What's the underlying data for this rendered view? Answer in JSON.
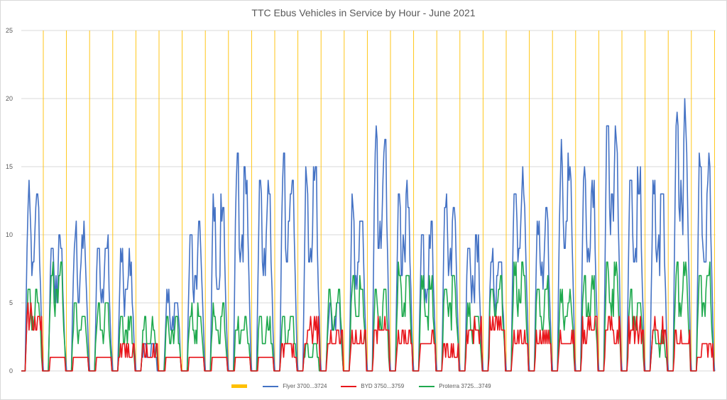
{
  "chart_data": {
    "type": "line",
    "title": "TTC Ebus Vehicles in Service by Hour - June 2021",
    "xlabel": "",
    "ylabel": "",
    "ylim": [
      0,
      25
    ],
    "yticks": [
      "0",
      "5",
      "10",
      "15",
      "20",
      "25"
    ],
    "grid": true,
    "legend_position": "bottom",
    "day_divider_color": "#ffc000",
    "legend": {
      "divider_label": "",
      "flyer_label": "Flyer 3700...3724",
      "byd_label": "BYD 3750...3759",
      "proterra_label": "Proterra 3725...3749"
    },
    "days": 30,
    "series": [
      {
        "name": "Flyer 3700...3724",
        "color": "#4472c4",
        "daily_peaks": [
          14,
          10,
          11,
          10,
          9,
          2,
          6,
          11,
          13,
          16,
          14,
          16,
          15,
          5,
          13,
          18,
          14,
          11,
          13,
          10,
          9,
          15,
          12,
          17,
          15,
          18,
          15,
          14,
          20,
          16
        ]
      },
      {
        "name": "BYD 3750...3759",
        "color": "#e8161b",
        "daily_peaks": [
          5,
          1,
          1,
          1,
          2,
          2,
          1,
          1,
          1,
          1,
          1,
          2,
          4,
          3,
          3,
          4,
          3,
          3,
          2,
          4,
          4,
          3,
          3,
          3,
          4,
          4,
          4,
          4,
          3,
          2
        ]
      },
      {
        "name": "Proterra 3725...3749",
        "color": "#1fa94e",
        "daily_peaks": [
          6,
          8,
          5,
          5,
          4,
          4,
          4,
          5,
          5,
          4,
          4,
          4,
          2,
          6,
          7,
          6,
          8,
          7,
          7,
          5,
          7,
          8,
          7,
          6,
          7,
          8,
          6,
          3,
          8,
          8
        ]
      }
    ]
  }
}
